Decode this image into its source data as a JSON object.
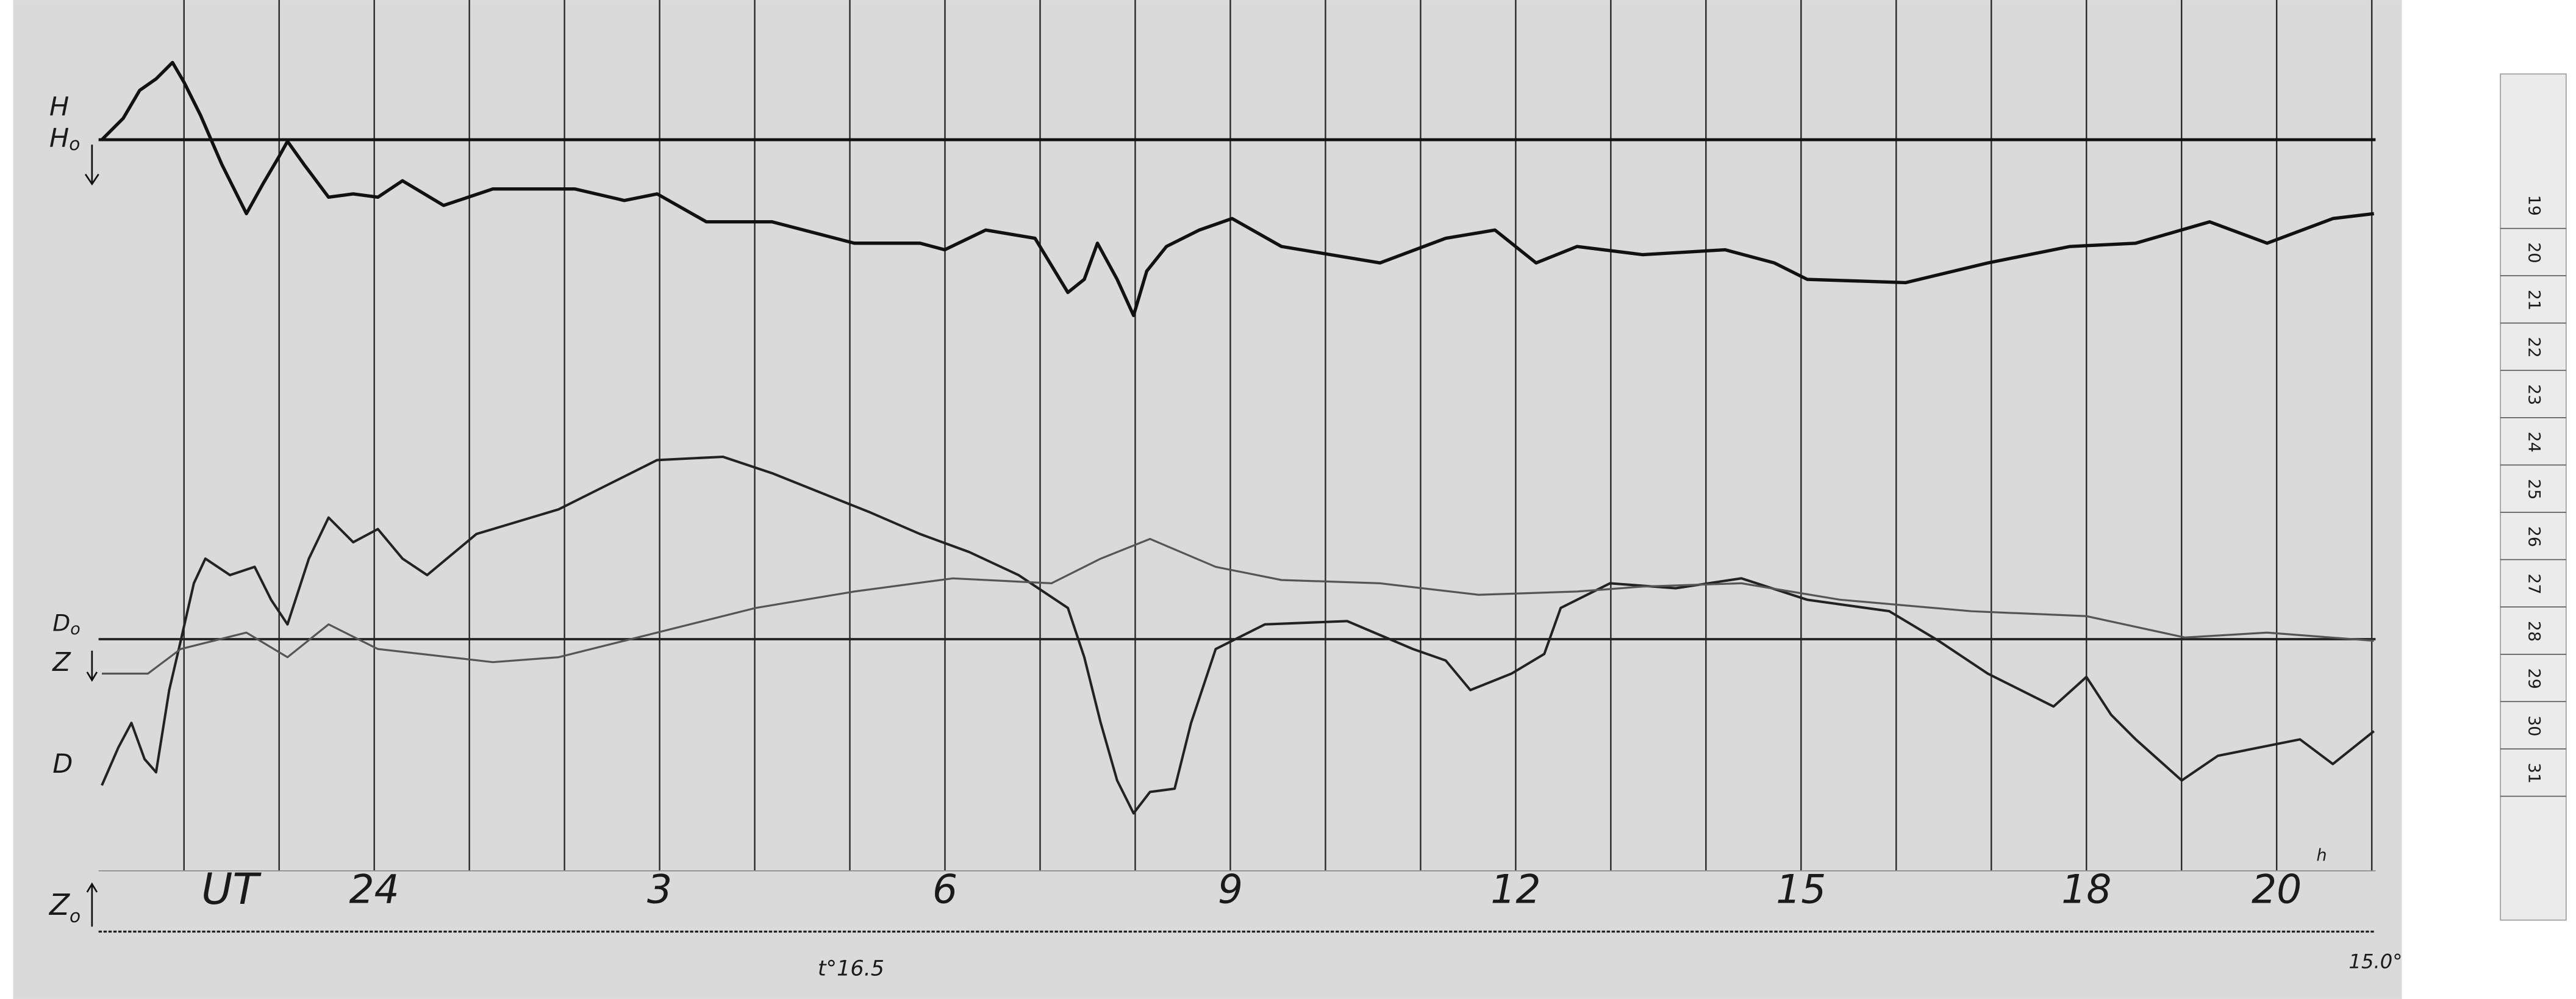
{
  "record": {
    "h_label": {
      "base": "H",
      "sub": "o"
    },
    "h_label_top": "H",
    "d_label": {
      "base": "D",
      "sub": "o"
    },
    "z_label": "Z",
    "d_trace_label": "D",
    "z0_label": {
      "base": "Z",
      "sub": "o"
    },
    "time_axis": {
      "unit": "UT",
      "hours": [
        "24",
        "3",
        "6",
        "9",
        "12",
        "15",
        "18",
        "20"
      ],
      "suffix": "h"
    },
    "temperature_start": "t°16.5",
    "temperature_end": "15.0°"
  },
  "ruler": {
    "marks": [
      "19",
      "20",
      "21",
      "22",
      "23",
      "24",
      "25",
      "26",
      "27",
      "28",
      "29",
      "30",
      "31"
    ]
  }
}
